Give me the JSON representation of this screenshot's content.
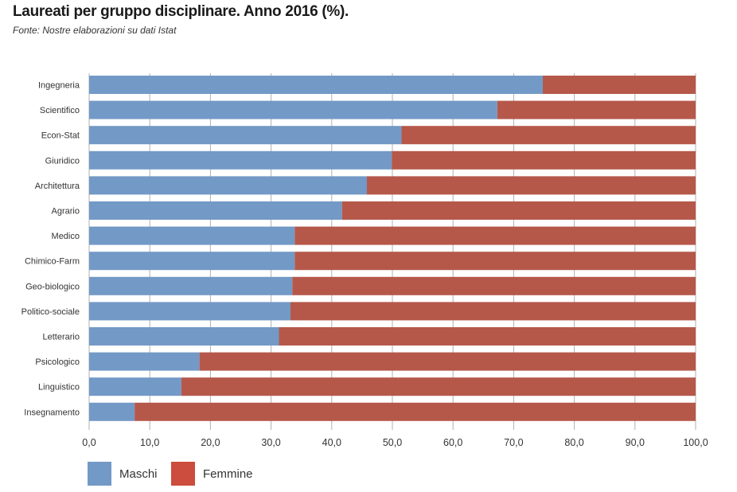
{
  "header": {
    "title": "Laureati per gruppo disciplinare. Anno 2016 (%).",
    "subtitle": "Fonte: Nostre elaborazioni su dati Istat"
  },
  "colors": {
    "maschi": "#7399c6",
    "femmine": "#b5584a",
    "femmine_legend": "#cc4c3d",
    "grid": "#b0b0b0"
  },
  "chart_data": {
    "type": "bar",
    "orientation": "horizontal",
    "stacked": true,
    "title": "Laureati per gruppo disciplinare. Anno 2016 (%).",
    "subtitle": "Fonte: Nostre elaborazioni su dati Istat",
    "categories": [
      "Ingegneria",
      "Scientifico",
      "Econ-Stat",
      "Giuridico",
      "Architettura",
      "Agrario",
      "Medico",
      "Chimico-Farm",
      "Geo-biologico",
      "Politico-sociale",
      "Letterario",
      "Psicologico",
      "Linguistico",
      "Insegnamento"
    ],
    "series": [
      {
        "name": "Maschi",
        "values": [
          74.8,
          67.3,
          51.5,
          49.9,
          45.8,
          41.7,
          33.9,
          33.9,
          33.5,
          33.2,
          31.3,
          18.2,
          15.2,
          7.5
        ]
      },
      {
        "name": "Femmine",
        "values": [
          25.2,
          32.7,
          48.5,
          50.1,
          54.2,
          58.3,
          66.1,
          66.1,
          66.5,
          66.8,
          68.7,
          81.8,
          84.8,
          92.5
        ]
      }
    ],
    "xlim": [
      0,
      100
    ],
    "xticks": [
      "0,0",
      "10,0",
      "20,0",
      "30,0",
      "40,0",
      "50,0",
      "60,0",
      "70,0",
      "80,0",
      "90,0",
      "100,0"
    ],
    "grid": true,
    "legend": "bottom-left"
  },
  "legend": {
    "maschi_label": "Maschi",
    "femmine_label": "Femmine"
  }
}
